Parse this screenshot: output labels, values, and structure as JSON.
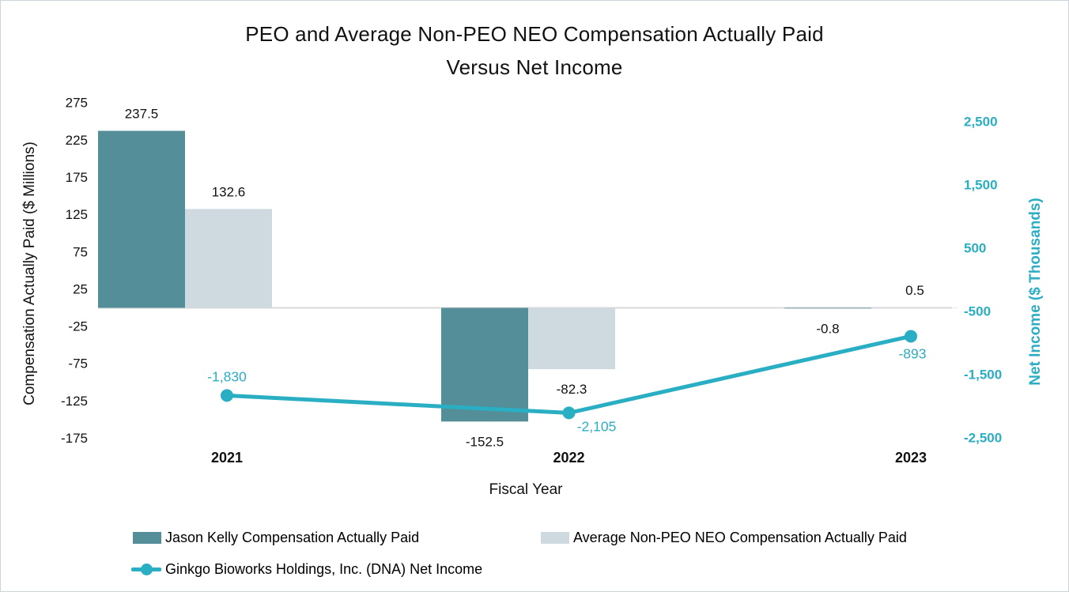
{
  "title": {
    "line1": "PEO and Average Non-PEO NEO Compensation Actually Paid",
    "line2": "Versus Net Income"
  },
  "colors": {
    "peo_bar": "#538E99",
    "neo_bar": "#CEDAE0",
    "net_income_line": "#2AAEC3",
    "axis_line": "#D9D9D9",
    "text": "#000000"
  },
  "chart_data": {
    "type": "bar+line combo, dual y-axes",
    "title": "PEO and Average Non-PEO NEO Compensation Actually Paid Versus Net Income",
    "xlabel": "Fiscal Year",
    "categories": [
      "2021",
      "2022",
      "2023"
    ],
    "series": [
      {
        "name": "Jason Kelly Compensation Actually Paid",
        "type": "bar",
        "axis": "left",
        "color": "#538E99",
        "values": [
          237.5,
          -152.5,
          -0.8
        ],
        "labels": [
          "237.5",
          "-152.5",
          "-0.8"
        ]
      },
      {
        "name": "Average Non-PEO NEO Compensation Actually Paid",
        "type": "bar",
        "axis": "left",
        "color": "#CEDAE0",
        "values": [
          132.6,
          -82.3,
          0.5
        ],
        "labels": [
          "132.6",
          "-82.3",
          "0.5"
        ]
      },
      {
        "name": "Ginkgo Bioworks Holdings, Inc. (DNA) Net Income",
        "type": "line",
        "axis": "right",
        "color": "#2AAEC3",
        "values": [
          -1830,
          -2105,
          -893
        ],
        "labels": [
          "-1,830",
          "-2,105",
          "-893"
        ],
        "label_positions": [
          "above",
          "below-right",
          "below"
        ]
      }
    ],
    "left_axis": {
      "label": "Compensation Actually Paid ($ Millions)",
      "tick_values": [
        275,
        225,
        175,
        125,
        75,
        25,
        -25,
        -75,
        -125,
        -175
      ],
      "tick_labels": [
        "275",
        "225",
        "175",
        "125",
        "75",
        "25",
        "-25",
        "-75",
        "-125",
        "-175"
      ],
      "ylim": [
        -175,
        275
      ]
    },
    "right_axis": {
      "label": "Net Income ($ Thousands)",
      "tick_values": [
        2500,
        1500,
        500,
        -500,
        -1500,
        -2500
      ],
      "tick_labels": [
        "2,500",
        "1,500",
        "500",
        "-500",
        "-1,500",
        "-2,500"
      ],
      "ylim": [
        -2500,
        2500
      ]
    },
    "grid": false,
    "legend_position": "bottom"
  },
  "legend": {
    "item1": "Jason Kelly Compensation Actually Paid",
    "item2": "Average Non-PEO NEO Compensation Actually Paid",
    "item3": "Ginkgo Bioworks Holdings, Inc. (DNA) Net Income"
  }
}
